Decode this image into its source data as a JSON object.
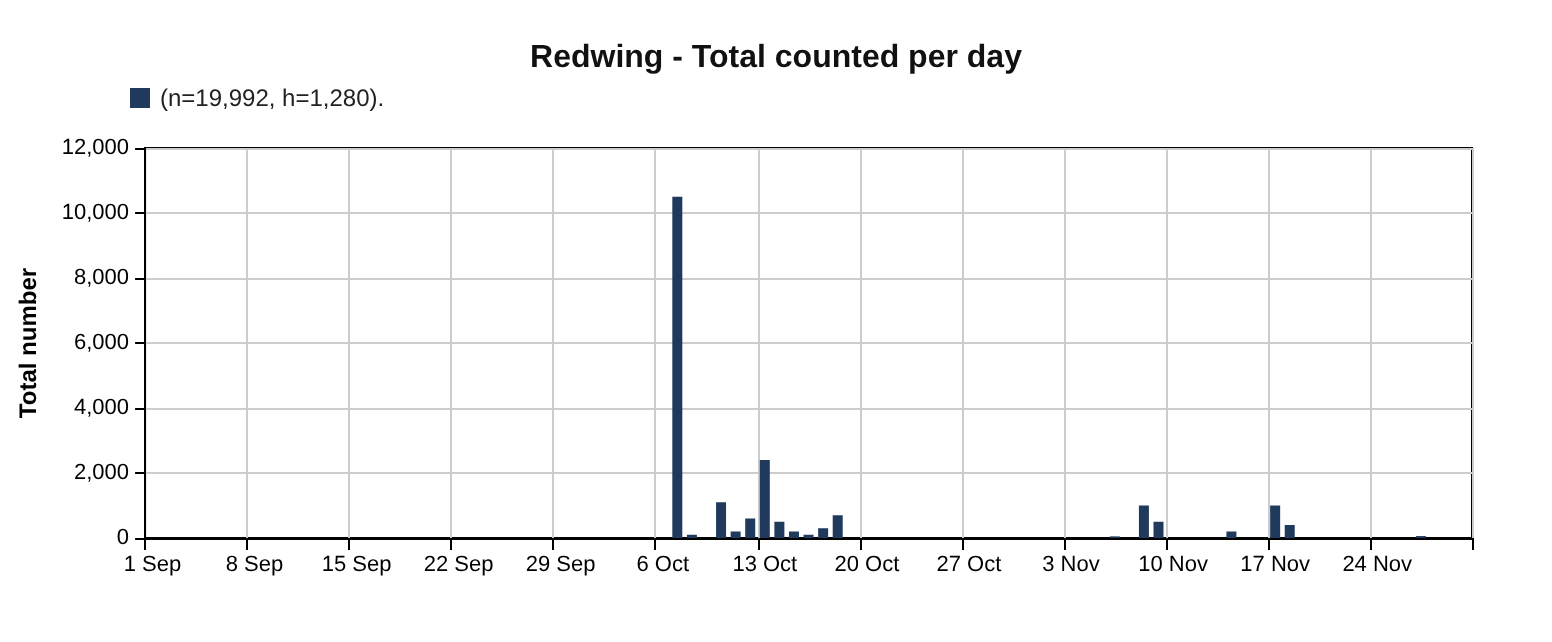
{
  "chart_data": {
    "type": "bar",
    "title": "Redwing - Total counted per day",
    "ylabel": "Total number",
    "categories": [
      "1 Sep",
      null,
      null,
      null,
      null,
      null,
      null,
      "8 Sep",
      null,
      null,
      null,
      null,
      null,
      null,
      "15 Sep",
      null,
      null,
      null,
      null,
      null,
      null,
      "22 Sep",
      null,
      null,
      null,
      null,
      null,
      null,
      "29 Sep",
      null,
      null,
      null,
      null,
      null,
      null,
      "6 Oct",
      null,
      null,
      null,
      null,
      null,
      null,
      "13 Oct",
      null,
      null,
      null,
      null,
      null,
      null,
      "20 Oct",
      null,
      null,
      null,
      null,
      null,
      null,
      "27 Oct",
      null,
      null,
      null,
      null,
      null,
      null,
      "3 Nov",
      null,
      null,
      null,
      null,
      null,
      null,
      "10 Nov",
      null,
      null,
      null,
      null,
      null,
      null,
      "17 Nov",
      null,
      null,
      null,
      null,
      null,
      null,
      "24 Nov",
      null,
      null,
      null,
      null,
      null,
      null
    ],
    "series": [
      {
        "name": "(n=19,992, h=1,280).",
        "color": "#1f3a5c",
        "values": [
          null,
          null,
          null,
          null,
          null,
          null,
          null,
          null,
          null,
          null,
          null,
          null,
          null,
          null,
          null,
          null,
          null,
          null,
          null,
          null,
          null,
          null,
          null,
          null,
          null,
          null,
          null,
          null,
          null,
          null,
          null,
          null,
          null,
          null,
          null,
          null,
          10500,
          100,
          null,
          1100,
          200,
          600,
          2400,
          500,
          200,
          100,
          300,
          700,
          null,
          null,
          null,
          null,
          null,
          null,
          null,
          null,
          null,
          null,
          null,
          null,
          null,
          null,
          null,
          null,
          null,
          null,
          50,
          null,
          1000,
          500,
          null,
          null,
          null,
          null,
          200,
          null,
          null,
          1000,
          400,
          null,
          null,
          null,
          null,
          null,
          null,
          null,
          null,
          60,
          null,
          null,
          null
        ]
      }
    ],
    "ylim": [
      0,
      12000
    ],
    "yticks": [
      0,
      {
        "value": 2000,
        "label": "2,000"
      },
      {
        "value": 4000,
        "label": "4,000"
      },
      {
        "value": 6000,
        "label": "6,000"
      },
      {
        "value": 8000,
        "label": "8,000"
      },
      {
        "value": 10000,
        "label": "10,000"
      },
      {
        "value": 12000,
        "label": "12,000"
      }
    ],
    "grid": true,
    "legend": "top left"
  }
}
